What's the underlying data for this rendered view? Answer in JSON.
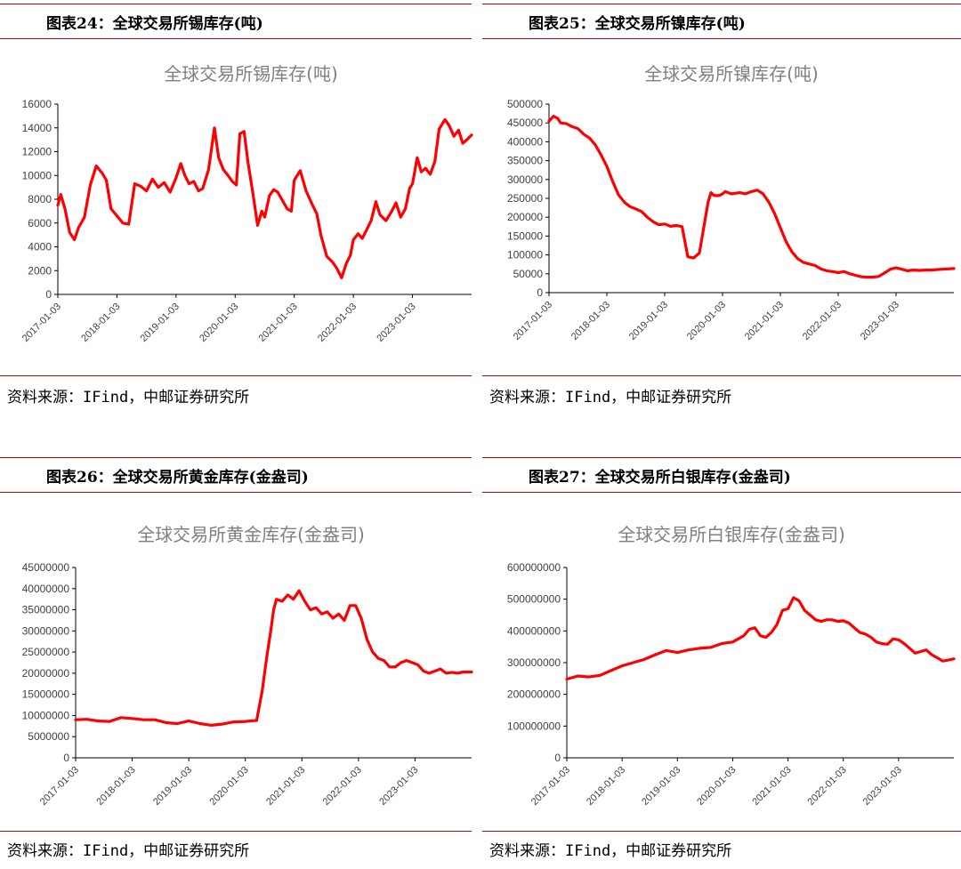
{
  "source_text": "资料来源：IFind，中邮证券研究所",
  "line_color": "#ff0000",
  "accent_color": "#c00000",
  "panels": [
    {
      "header": "图表24：全球交易所锡库存(吨)",
      "chart_data": {
        "type": "line",
        "title": "全球交易所锡库存(吨)",
        "xlabel": "",
        "ylabel": "",
        "ylim": [
          0,
          16000
        ],
        "yticks": [
          0,
          2000,
          4000,
          6000,
          8000,
          10000,
          12000,
          14000,
          16000
        ],
        "xlim": [
          2017.0,
          2024.0
        ],
        "xtick_labels": [
          "2017-01-03",
          "2018-01-03",
          "2019-01-03",
          "2020-01-03",
          "2021-01-03",
          "2022-01-03",
          "2023-01-03"
        ],
        "grid": false,
        "legend": "none",
        "series": [
          {
            "x": [
              2017.0,
              2017.05,
              2017.12,
              2017.2,
              2017.28,
              2017.35,
              2017.45,
              2017.55,
              2017.65,
              2017.75,
              2017.82,
              2017.9,
              2018.0,
              2018.1,
              2018.2,
              2018.3,
              2018.4,
              2018.5,
              2018.6,
              2018.7,
              2018.8,
              2018.9,
              2019.0,
              2019.08,
              2019.15,
              2019.22,
              2019.3,
              2019.38,
              2019.45,
              2019.55,
              2019.65,
              2019.72,
              2019.8,
              2019.88,
              2019.95,
              2020.02,
              2020.08,
              2020.15,
              2020.22,
              2020.3,
              2020.38,
              2020.45,
              2020.5,
              2020.58,
              2020.65,
              2020.72,
              2020.8,
              2020.88,
              2020.95,
              2021.0,
              2021.1,
              2021.2,
              2021.3,
              2021.38,
              2021.45,
              2021.55,
              2021.65,
              2021.72,
              2021.8,
              2021.88,
              2021.95,
              2022.0,
              2022.08,
              2022.15,
              2022.22,
              2022.3,
              2022.38,
              2022.45,
              2022.55,
              2022.65,
              2022.72,
              2022.8,
              2022.88,
              2022.95,
              2023.0,
              2023.08,
              2023.15,
              2023.22,
              2023.3,
              2023.38,
              2023.45,
              2023.55,
              2023.62,
              2023.7,
              2023.78,
              2023.85,
              2023.92,
              2024.0
            ],
            "y": [
              7500,
              8400,
              7200,
              5200,
              4600,
              5600,
              6500,
              9200,
              10800,
              10200,
              9600,
              7200,
              6600,
              6000,
              5900,
              9300,
              9100,
              8700,
              9700,
              9000,
              9400,
              8600,
              9800,
              11000,
              10000,
              9300,
              9500,
              8700,
              8900,
              10500,
              14000,
              11500,
              10500,
              10000,
              9500,
              9200,
              13500,
              13700,
              11000,
              8500,
              5800,
              7000,
              6500,
              8300,
              8800,
              8600,
              7900,
              7200,
              7000,
              9600,
              10400,
              8700,
              7600,
              6800,
              5000,
              3200,
              2700,
              2200,
              1400,
              2600,
              3300,
              4600,
              5100,
              4700,
              5400,
              6200,
              7800,
              6700,
              6200,
              7000,
              7700,
              6500,
              7200,
              8900,
              9300,
              11500,
              10300,
              10600,
              10100,
              11200,
              13900,
              14700,
              14200,
              13300,
              13800,
              12700,
              13000,
              13400
            ]
          }
        ]
      }
    },
    {
      "header": "图表25：全球交易所镍库存(吨)",
      "chart_data": {
        "type": "line",
        "title": "全球交易所镍库存(吨)",
        "xlabel": "",
        "ylabel": "",
        "ylim": [
          0,
          500000
        ],
        "yticks": [
          0,
          50000,
          100000,
          150000,
          200000,
          250000,
          300000,
          350000,
          400000,
          450000,
          500000
        ],
        "xlim": [
          2017.0,
          2024.0
        ],
        "xtick_labels": [
          "2017-01-03",
          "2018-01-03",
          "2019-01-03",
          "2020-01-03",
          "2021-01-03",
          "2022-01-03",
          "2023-01-03"
        ],
        "grid": false,
        "legend": "none",
        "series": [
          {
            "x": [
              2017.0,
              2017.08,
              2017.15,
              2017.2,
              2017.3,
              2017.4,
              2017.5,
              2017.6,
              2017.7,
              2017.8,
              2017.9,
              2018.0,
              2018.1,
              2018.2,
              2018.3,
              2018.4,
              2018.5,
              2018.6,
              2018.7,
              2018.8,
              2018.9,
              2019.0,
              2019.1,
              2019.2,
              2019.3,
              2019.4,
              2019.5,
              2019.6,
              2019.7,
              2019.75,
              2019.8,
              2019.85,
              2019.9,
              2019.95,
              2020.0,
              2020.05,
              2020.1,
              2020.15,
              2020.2,
              2020.3,
              2020.4,
              2020.5,
              2020.6,
              2020.7,
              2020.8,
              2020.9,
              2021.0,
              2021.1,
              2021.2,
              2021.3,
              2021.4,
              2021.5,
              2021.6,
              2021.7,
              2021.8,
              2021.9,
              2022.0,
              2022.1,
              2022.2,
              2022.3,
              2022.4,
              2022.5,
              2022.6,
              2022.7,
              2022.8,
              2022.9,
              2023.0,
              2023.1,
              2023.2,
              2023.3,
              2023.4,
              2023.5,
              2023.6,
              2023.7,
              2023.8,
              2023.9,
              2024.0
            ],
            "y": [
              455000,
              468000,
              462000,
              450000,
              448000,
              440000,
              435000,
              420000,
              410000,
              392000,
              365000,
              335000,
              295000,
              260000,
              240000,
              228000,
              222000,
              215000,
              200000,
              188000,
              180000,
              182000,
              176000,
              178000,
              175000,
              95000,
              92000,
              105000,
              195000,
              240000,
              265000,
              258000,
              257000,
              258000,
              262000,
              268000,
              265000,
              262000,
              263000,
              265000,
              262000,
              268000,
              272000,
              262000,
              240000,
              210000,
              172000,
              135000,
              108000,
              90000,
              80000,
              76000,
              72000,
              63000,
              58000,
              56000,
              53000,
              56000,
              50000,
              46000,
              42000,
              41000,
              41000,
              43000,
              52000,
              62000,
              66000,
              62000,
              58000,
              60000,
              59000,
              60000,
              60000,
              61000,
              62000,
              63000,
              64000
            ]
          }
        ]
      }
    },
    {
      "header": "图表26：全球交易所黄金库存(金盎司)",
      "chart_data": {
        "type": "line",
        "title": "全球交易所黄金库存(金盎司)",
        "xlabel": "",
        "ylabel": "",
        "ylim": [
          0,
          45000000
        ],
        "yticks": [
          0,
          5000000,
          10000000,
          15000000,
          20000000,
          25000000,
          30000000,
          35000000,
          40000000,
          45000000
        ],
        "xlim": [
          2017.0,
          2024.0
        ],
        "xtick_labels": [
          "2017-01-03",
          "2018-01-03",
          "2019-01-03",
          "2020-01-03",
          "2021-01-03",
          "2022-01-03",
          "2023-01-03"
        ],
        "grid": false,
        "legend": "none",
        "series": [
          {
            "x": [
              2017.0,
              2017.2,
              2017.4,
              2017.6,
              2017.8,
              2018.0,
              2018.2,
              2018.4,
              2018.6,
              2018.8,
              2019.0,
              2019.2,
              2019.4,
              2019.6,
              2019.8,
              2020.0,
              2020.15,
              2020.2,
              2020.3,
              2020.38,
              2020.45,
              2020.5,
              2020.55,
              2020.65,
              2020.75,
              2020.85,
              2020.95,
              2021.05,
              2021.15,
              2021.25,
              2021.35,
              2021.45,
              2021.55,
              2021.65,
              2021.75,
              2021.85,
              2021.95,
              2022.05,
              2022.15,
              2022.25,
              2022.35,
              2022.45,
              2022.55,
              2022.65,
              2022.75,
              2022.85,
              2022.95,
              2023.05,
              2023.15,
              2023.25,
              2023.35,
              2023.45,
              2023.55,
              2023.65,
              2023.75,
              2023.85,
              2024.0
            ],
            "y": [
              9000000,
              9100000,
              8700000,
              8600000,
              9500000,
              9300000,
              9000000,
              9000000,
              8300000,
              8100000,
              8700000,
              8100000,
              7700000,
              8000000,
              8500000,
              8600000,
              8800000,
              8800000,
              16000000,
              24000000,
              30000000,
              35000000,
              37500000,
              37000000,
              38500000,
              37500000,
              39500000,
              37000000,
              35000000,
              35500000,
              34000000,
              34500000,
              33000000,
              34000000,
              32500000,
              36000000,
              36000000,
              33000000,
              28000000,
              25000000,
              23500000,
              23000000,
              21500000,
              21500000,
              22500000,
              23000000,
              22500000,
              22000000,
              20500000,
              20000000,
              20500000,
              21000000,
              20000000,
              20200000,
              20000000,
              20300000,
              20300000
            ]
          }
        ]
      }
    },
    {
      "header": "图表27：全球交易所白银库存(金盎司)",
      "chart_data": {
        "type": "line",
        "title": "全球交易所白银库存(金盎司)",
        "xlabel": "",
        "ylabel": "",
        "ylim": [
          0,
          600000000
        ],
        "yticks": [
          0,
          100000000,
          200000000,
          300000000,
          400000000,
          500000000,
          600000000
        ],
        "xlim": [
          2017.0,
          2024.0
        ],
        "xtick_labels": [
          "2017-01-03",
          "2018-01-03",
          "2019-01-03",
          "2020-01-03",
          "2021-01-03",
          "2022-01-03",
          "2023-01-03"
        ],
        "grid": false,
        "legend": "none",
        "series": [
          {
            "x": [
              2017.0,
              2017.2,
              2017.4,
              2017.6,
              2017.8,
              2018.0,
              2018.2,
              2018.4,
              2018.6,
              2018.8,
              2019.0,
              2019.2,
              2019.4,
              2019.6,
              2019.8,
              2020.0,
              2020.2,
              2020.3,
              2020.4,
              2020.5,
              2020.6,
              2020.7,
              2020.8,
              2020.9,
              2021.0,
              2021.1,
              2021.2,
              2021.3,
              2021.4,
              2021.5,
              2021.6,
              2021.7,
              2021.8,
              2021.9,
              2022.0,
              2022.1,
              2022.2,
              2022.3,
              2022.4,
              2022.5,
              2022.6,
              2022.7,
              2022.8,
              2022.9,
              2023.0,
              2023.1,
              2023.2,
              2023.3,
              2023.4,
              2023.5,
              2023.6,
              2023.7,
              2023.8,
              2023.9,
              2024.0
            ],
            "y": [
              248000000,
              258000000,
              255000000,
              260000000,
              275000000,
              290000000,
              300000000,
              310000000,
              325000000,
              338000000,
              332000000,
              340000000,
              345000000,
              348000000,
              360000000,
              365000000,
              385000000,
              405000000,
              410000000,
              385000000,
              380000000,
              395000000,
              420000000,
              465000000,
              470000000,
              505000000,
              495000000,
              465000000,
              450000000,
              435000000,
              430000000,
              435000000,
              435000000,
              430000000,
              432000000,
              425000000,
              410000000,
              395000000,
              390000000,
              380000000,
              365000000,
              360000000,
              358000000,
              375000000,
              372000000,
              360000000,
              345000000,
              330000000,
              335000000,
              340000000,
              325000000,
              315000000,
              305000000,
              308000000,
              312000000
            ]
          }
        ]
      }
    }
  ]
}
